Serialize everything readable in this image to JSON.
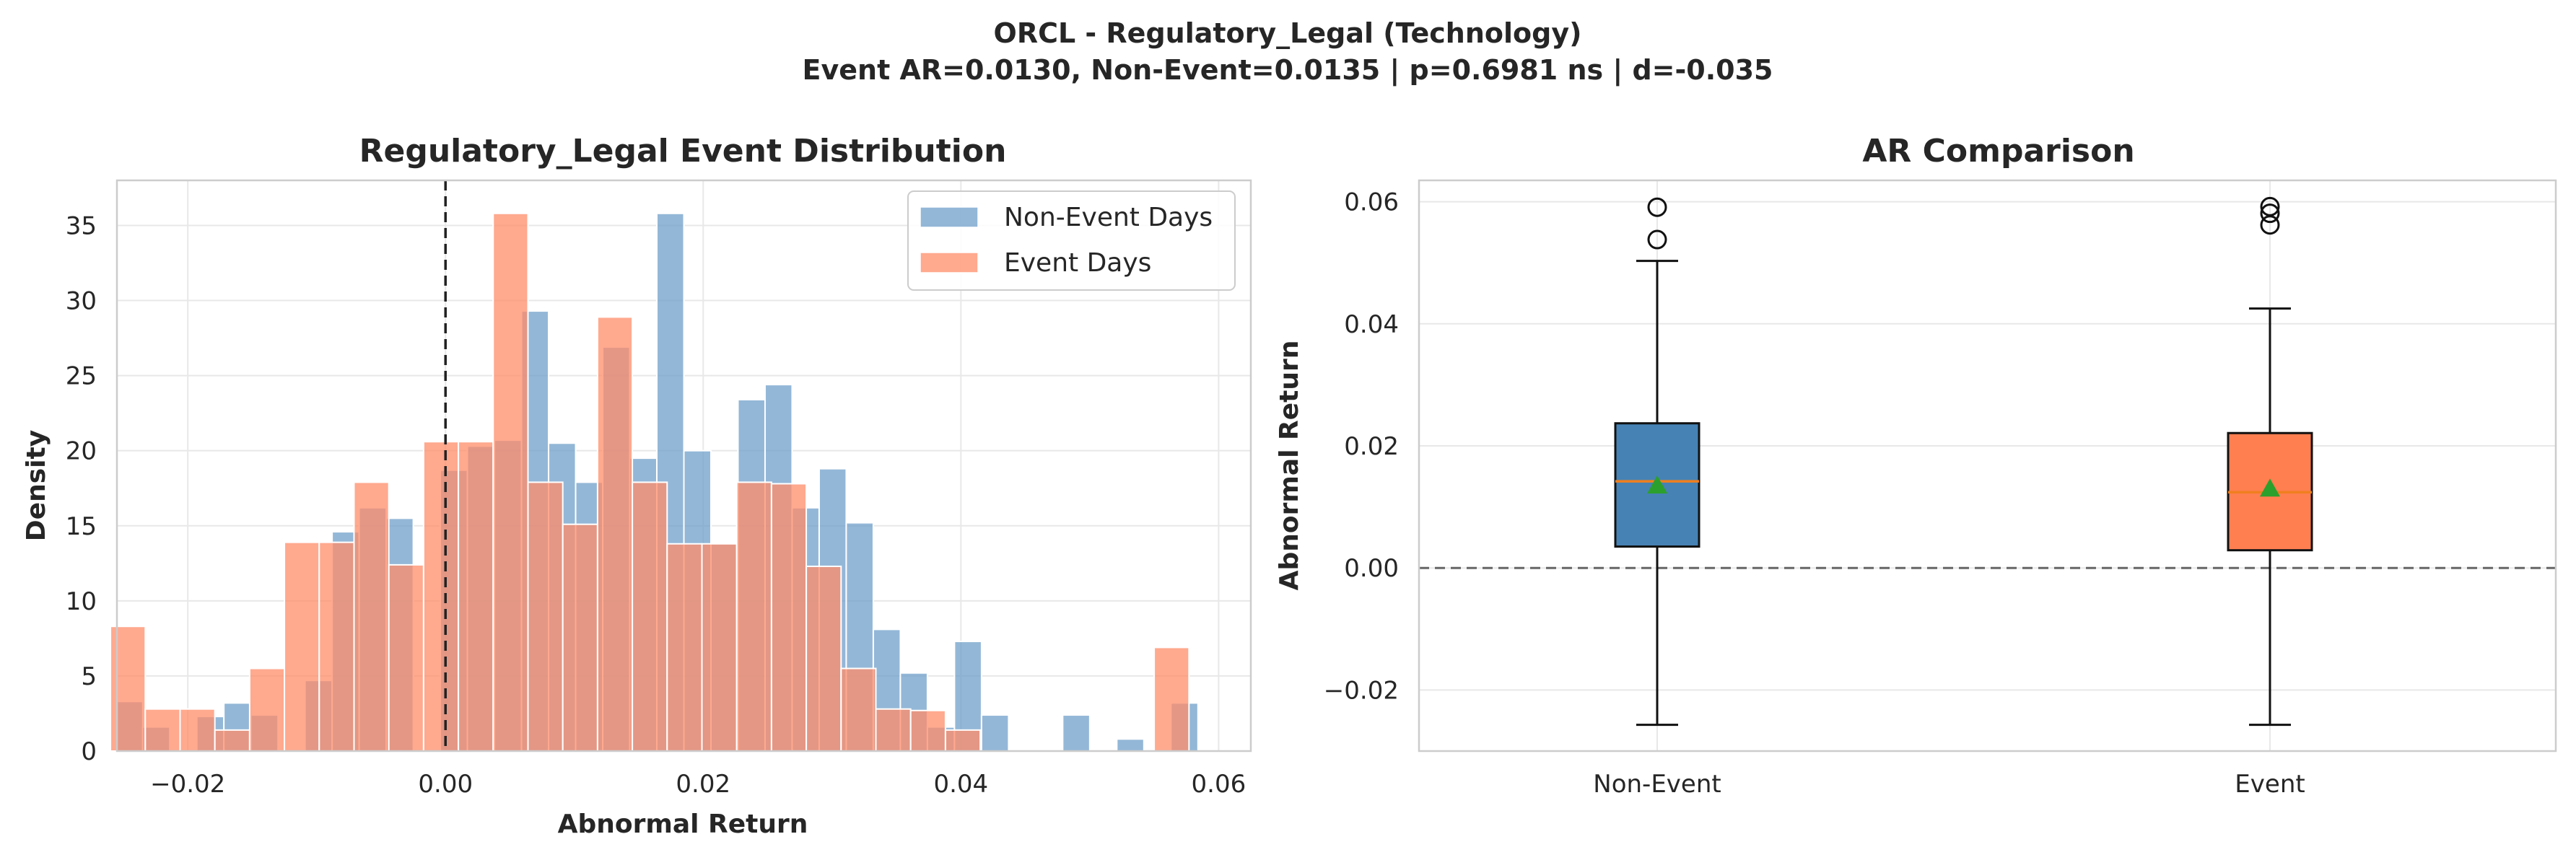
{
  "figure": {
    "suptitle_line1": "ORCL - Regulatory_Legal (Technology)",
    "suptitle_line2": "Event AR=0.0130, Non-Event=0.0135 | p=0.6981 ns | d=-0.035"
  },
  "chart_data": [
    {
      "type": "histogram",
      "title": "Regulatory_Legal Event Distribution",
      "xlabel": "Abnormal Return",
      "ylabel": "Density",
      "xlim": [
        -0.0255,
        0.0625
      ],
      "ylim": [
        0,
        38
      ],
      "xticks": [
        -0.02,
        0.0,
        0.02,
        0.04,
        0.06
      ],
      "xtick_labels": [
        "−0.02",
        "0.00",
        "0.02",
        "0.04",
        "0.06"
      ],
      "yticks": [
        0,
        5,
        10,
        15,
        20,
        25,
        30,
        35
      ],
      "ytick_labels": [
        "0",
        "5",
        "10",
        "15",
        "20",
        "25",
        "30",
        "35"
      ],
      "grid": true,
      "legend_position": "top-right",
      "reference_line": {
        "x": 0.0,
        "style": "dashed",
        "color": "#222222"
      },
      "series": [
        {
          "name": "Non-Event Days",
          "color": "#6f9fca",
          "opacity": 0.75,
          "bin_edges": [
            -0.0256,
            -0.0235,
            -0.0214,
            -0.0193,
            -0.0172,
            -0.0151,
            -0.013,
            -0.0109,
            -0.0088,
            -0.0067,
            -0.0046,
            -0.0025,
            -0.0004,
            0.0017,
            0.0038,
            0.0059,
            0.008,
            0.0101,
            0.0122,
            0.0143,
            0.0164,
            0.0185,
            0.0206,
            0.0227,
            0.0248,
            0.0269,
            0.029,
            0.0311,
            0.0332,
            0.0353,
            0.0374,
            0.0395,
            0.0416,
            0.0437,
            0.0458,
            0.0479,
            0.05,
            0.0521,
            0.0542,
            0.0563,
            0.0584,
            0.0605
          ],
          "values": [
            3.3,
            1.6,
            0,
            2.3,
            3.2,
            2.4,
            0,
            4.7,
            14.6,
            16.2,
            15.5,
            0,
            18.7,
            20.3,
            20.7,
            29.3,
            20.5,
            17.9,
            26.9,
            19.5,
            35.8,
            20.0,
            13.8,
            23.4,
            24.4,
            16.2,
            18.8,
            15.2,
            8.1,
            5.2,
            1.6,
            7.3,
            2.4,
            0,
            0,
            2.4,
            0,
            0.8,
            0,
            3.2,
            0
          ]
        },
        {
          "name": "Event Days",
          "color": "#ff8c69",
          "opacity": 0.75,
          "bin_edges": [
            -0.026,
            -0.0233,
            -0.0206,
            -0.0179,
            -0.0152,
            -0.0125,
            -0.0098,
            -0.0071,
            -0.0044,
            -0.0017,
            0.001,
            0.0037,
            0.0064,
            0.0091,
            0.0118,
            0.0145,
            0.0172,
            0.0199,
            0.0226,
            0.0253,
            0.028,
            0.0307,
            0.0334,
            0.0361,
            0.0388,
            0.0415,
            0.0442,
            0.0469,
            0.0496,
            0.0523,
            0.055,
            0.0577,
            0.0604
          ],
          "values": [
            8.3,
            2.8,
            2.8,
            1.4,
            5.5,
            13.9,
            13.9,
            17.9,
            12.4,
            20.6,
            20.6,
            35.8,
            17.9,
            15.1,
            28.9,
            17.9,
            13.8,
            13.8,
            17.9,
            17.8,
            12.3,
            5.5,
            2.8,
            2.7,
            1.4,
            0,
            0,
            0,
            0,
            0,
            6.9,
            0
          ]
        }
      ]
    },
    {
      "type": "box",
      "title": "AR Comparison",
      "xlabel": "",
      "ylabel": "Abnormal Return",
      "ylim": [
        -0.03,
        0.0635
      ],
      "yticks": [
        -0.02,
        0.0,
        0.02,
        0.04,
        0.06
      ],
      "ytick_labels": [
        "−0.02",
        "0.00",
        "0.02",
        "0.04",
        "0.06"
      ],
      "grid": true,
      "reference_line": {
        "y": 0.0,
        "style": "dashed",
        "color": "#666666"
      },
      "categories": [
        "Non-Event",
        "Event"
      ],
      "boxes": [
        {
          "name": "Non-Event",
          "color": "#4682b4",
          "whisker_low": -0.0257,
          "q1": 0.0035,
          "median": 0.0142,
          "q3": 0.0237,
          "whisker_high": 0.0503,
          "mean": 0.0135,
          "outliers": [
            0.0538,
            0.0591
          ]
        },
        {
          "name": "Event",
          "color": "#ff7f50",
          "whisker_low": -0.0257,
          "q1": 0.0029,
          "median": 0.0124,
          "q3": 0.0221,
          "whisker_high": 0.0425,
          "mean": 0.013,
          "outliers": [
            0.0562,
            0.0581,
            0.0592
          ]
        }
      ],
      "median_color": "#f07f1e",
      "mean_marker_color": "#2ca02c"
    }
  ]
}
